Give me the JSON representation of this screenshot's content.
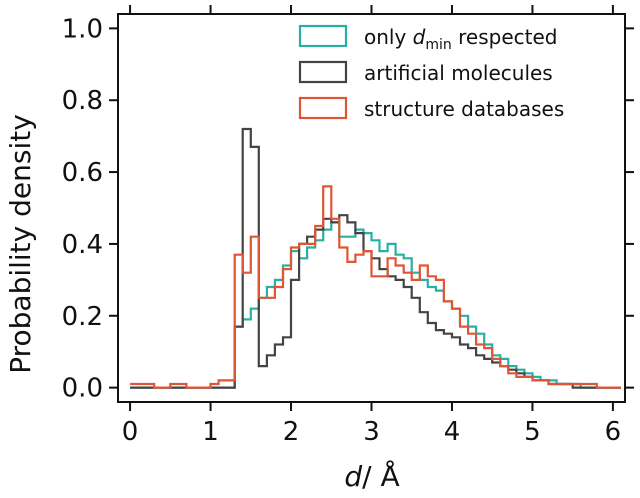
{
  "chart_data": {
    "type": "step",
    "xlabel_italic": "d",
    "xlabel_rest": "/ Å",
    "ylabel": "Probability density",
    "xlim": [
      -0.15,
      6.15
    ],
    "ylim": [
      -0.04,
      1.04
    ],
    "xticks": [
      "0",
      "1",
      "2",
      "3",
      "4",
      "5",
      "6"
    ],
    "yticks": [
      "0.0",
      "0.2",
      "0.4",
      "0.6",
      "0.8",
      "1.0"
    ],
    "legend": {
      "position": "top-right",
      "entries": [
        {
          "pre": "only ",
          "italic": "d",
          "sub": "min",
          "post": " respected"
        },
        {
          "pre": "artificial molecules"
        },
        {
          "pre": "structure databases"
        }
      ]
    },
    "bin_edges": [
      0.0,
      0.1,
      0.2,
      0.3,
      0.4,
      0.5,
      0.6,
      0.7,
      0.8,
      0.9,
      1.0,
      1.1,
      1.2,
      1.3,
      1.4,
      1.5,
      1.6,
      1.7,
      1.8,
      1.9,
      2.0,
      2.1,
      2.2,
      2.3,
      2.4,
      2.5,
      2.6,
      2.7,
      2.8,
      2.9,
      3.0,
      3.1,
      3.2,
      3.3,
      3.4,
      3.5,
      3.6,
      3.7,
      3.8,
      3.9,
      4.0,
      4.1,
      4.2,
      4.3,
      4.4,
      4.5,
      4.6,
      4.7,
      4.8,
      4.9,
      5.0,
      5.1,
      5.2,
      5.3,
      5.4,
      5.5,
      5.6,
      5.7,
      5.8,
      5.9,
      6.0,
      6.1
    ],
    "series": [
      {
        "color": "#2ab0a0",
        "values": [
          0,
          0,
          0,
          0,
          0,
          0,
          0,
          0,
          0,
          0,
          0,
          0,
          0,
          0.17,
          0.19,
          0.22,
          0.25,
          0.28,
          0.3,
          0.34,
          0.38,
          0.36,
          0.39,
          0.41,
          0.44,
          0.46,
          0.42,
          0.42,
          0.44,
          0.43,
          0.41,
          0.38,
          0.4,
          0.37,
          0.36,
          0.32,
          0.3,
          0.28,
          0.27,
          0.24,
          0.22,
          0.2,
          0.17,
          0.15,
          0.12,
          0.09,
          0.08,
          0.06,
          0.05,
          0.04,
          0.03,
          0.02,
          0.02,
          0.01,
          0.01,
          0.01,
          0,
          0,
          0,
          0,
          0
        ]
      },
      {
        "color": "#444444",
        "values": [
          0,
          0,
          0,
          0,
          0,
          0,
          0,
          0,
          0,
          0,
          0,
          0,
          0,
          0.17,
          0.72,
          0.67,
          0.06,
          0.09,
          0.12,
          0.14,
          0.3,
          0.4,
          0.42,
          0.44,
          0.47,
          0.46,
          0.48,
          0.46,
          0.43,
          0.38,
          0.36,
          0.33,
          0.31,
          0.3,
          0.28,
          0.25,
          0.21,
          0.18,
          0.16,
          0.15,
          0.14,
          0.12,
          0.11,
          0.09,
          0.08,
          0.07,
          0.06,
          0.05,
          0.04,
          0.03,
          0.02,
          0.02,
          0.01,
          0.01,
          0.01,
          0,
          0,
          0,
          0,
          0,
          0
        ]
      },
      {
        "color": "#e05535",
        "values": [
          0.01,
          0.01,
          0.01,
          0.0,
          0.0,
          0.01,
          0.01,
          0.0,
          0.0,
          0.0,
          0.01,
          0.02,
          0.02,
          0.37,
          0.32,
          0.42,
          0.25,
          0.25,
          0.28,
          0.33,
          0.39,
          0.4,
          0.4,
          0.45,
          0.56,
          0.47,
          0.39,
          0.35,
          0.37,
          0.38,
          0.31,
          0.31,
          0.36,
          0.34,
          0.32,
          0.3,
          0.34,
          0.31,
          0.3,
          0.24,
          0.22,
          0.17,
          0.15,
          0.12,
          0.11,
          0.08,
          0.06,
          0.04,
          0.03,
          0.03,
          0.02,
          0.02,
          0.01,
          0.01,
          0.01,
          0.01,
          0.01,
          0.01,
          0.0,
          0.0,
          0.0
        ]
      }
    ]
  }
}
